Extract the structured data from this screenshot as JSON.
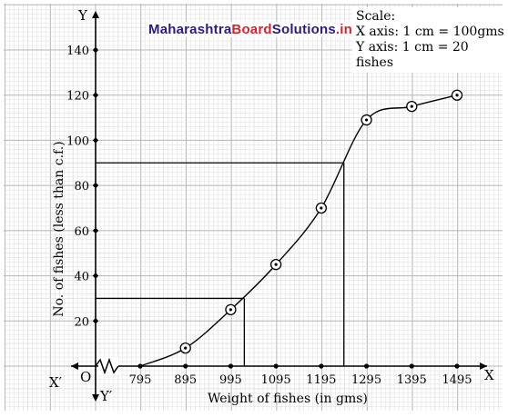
{
  "watermark": {
    "part1": "Maharashtra",
    "part2": "Board",
    "part3": "Solutions",
    "part4": ".in"
  },
  "scale": {
    "heading": "Scale:",
    "x_axis": "X axis: 1 cm = 100gms",
    "y_axis": "Y axis: 1 cm = 20 fishes"
  },
  "axis_letters": {
    "x": "X",
    "x_prime": "X′",
    "y": "Y",
    "y_prime": "Y′",
    "origin": "O"
  },
  "chart_data": {
    "type": "line",
    "title": "",
    "xlabel": "Weight of fishes (in gms)",
    "ylabel": "No. of fishes  (less than c.f.)",
    "x_ticks": [
      795,
      895,
      995,
      1095,
      1195,
      1295,
      1395,
      1495
    ],
    "y_ticks": [
      20,
      40,
      60,
      80,
      100,
      120,
      140
    ],
    "x_range": [
      795,
      1495
    ],
    "y_range": [
      0,
      140
    ],
    "grid": true,
    "x_axis_break": true,
    "series": [
      {
        "points": [
          {
            "x": 795,
            "y": 0
          },
          {
            "x": 895,
            "y": 8
          },
          {
            "x": 995,
            "y": 25
          },
          {
            "x": 1095,
            "y": 45
          },
          {
            "x": 1195,
            "y": 70
          },
          {
            "x": 1295,
            "y": 109
          },
          {
            "x": 1395,
            "y": 115
          },
          {
            "x": 1495,
            "y": 120
          }
        ]
      }
    ],
    "reference_lines": [
      {
        "y": 30,
        "x": 1025
      },
      {
        "y": 90,
        "x": 1245
      }
    ],
    "colors": {
      "line": "#000000",
      "grid_minor": "#d9d9d9",
      "grid_major": "#b5b5b5"
    }
  }
}
